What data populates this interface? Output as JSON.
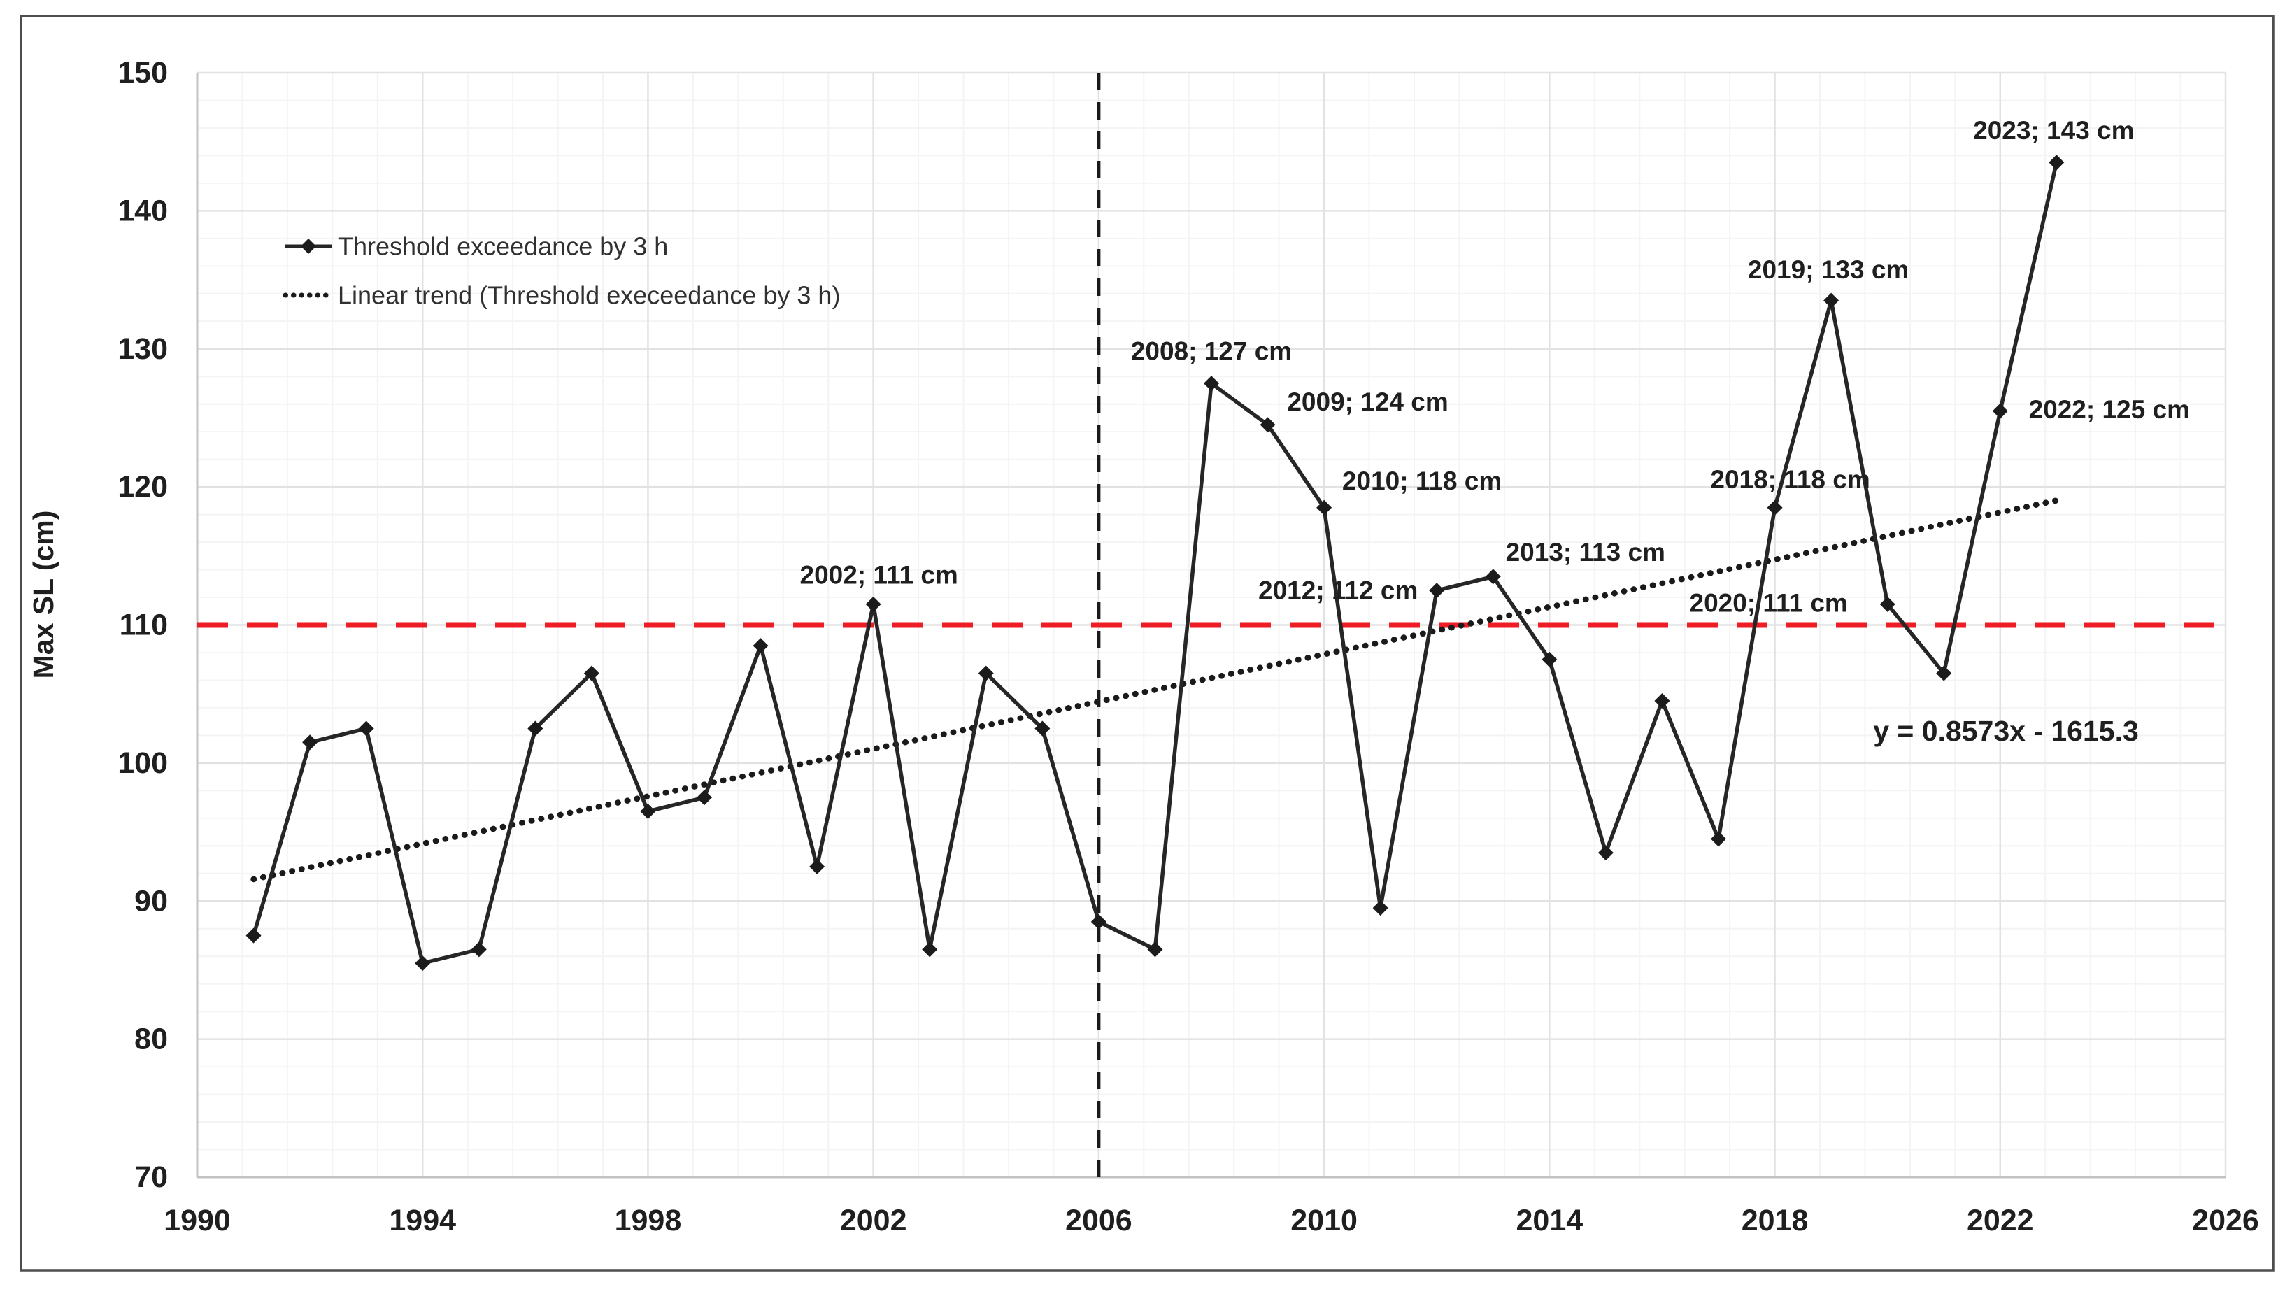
{
  "figure": {
    "y_axis_title": "Max SL (cm)",
    "equation_label": "y = 0.8573x - 1615.3"
  },
  "legend": [
    {
      "label": "Threshold exceedance by 3 h",
      "style": "line-diamond"
    },
    {
      "label": "Linear trend (Threshold execeedance by 3 h)",
      "style": "dotted"
    }
  ],
  "colors": {
    "series": "#262626",
    "marker": "#1b1b1b",
    "trend": "#1a1a1a",
    "threshold": "#ee1c25",
    "divider": "#1a1a1a",
    "grid_major": "#e2e2e2",
    "grid_minor": "#f4f4f4",
    "axis_line": "#c3c3c3",
    "text": "#1f1f1f",
    "legend_text": "#303030",
    "border": "#4d4d4d"
  },
  "chart_data": {
    "type": "line",
    "title": "",
    "xlabel": "",
    "ylabel": "Max SL (cm)",
    "xlim": [
      1990,
      2026
    ],
    "ylim": [
      70,
      150
    ],
    "x_ticks": [
      1990,
      1994,
      1998,
      2002,
      2006,
      2010,
      2014,
      2018,
      2022,
      2026
    ],
    "y_ticks": [
      150,
      140,
      130,
      120,
      110,
      100,
      90,
      80,
      70
    ],
    "x_minor_step": 0.8,
    "y_minor_step": 2,
    "grid": "major+minor",
    "legend_position": "top-left-inside",
    "x": [
      1991,
      1992,
      1993,
      1994,
      1995,
      1996,
      1997,
      1998,
      1999,
      2000,
      2001,
      2002,
      2003,
      2004,
      2005,
      2006,
      2007,
      2008,
      2009,
      2010,
      2011,
      2012,
      2013,
      2014,
      2015,
      2016,
      2017,
      2018,
      2019,
      2020,
      2021,
      2022,
      2023
    ],
    "series": [
      {
        "name": "Threshold exceedance by 3 h",
        "values": [
          87.5,
          101.5,
          102.5,
          85.5,
          86.5,
          102.5,
          106.5,
          96.5,
          97.5,
          108.5,
          92.5,
          111.5,
          86.5,
          106.5,
          102.5,
          88.5,
          86.5,
          127.5,
          124.5,
          118.5,
          89.5,
          112.5,
          113.5,
          107.5,
          93.5,
          104.5,
          94.5,
          118.5,
          133.5,
          111.5,
          106.5,
          125.5,
          143.5
        ]
      }
    ],
    "trend": {
      "name": "Linear trend (Threshold execeedance by 3 h)",
      "slope": 0.8573,
      "intercept": -1615.3,
      "x_start": 1991,
      "x_end": 2023
    },
    "threshold_line": {
      "y": 110,
      "style": "dashed"
    },
    "vertical_line": {
      "x": 2006,
      "style": "dashed"
    },
    "annotations": [
      {
        "year": 2002,
        "label": "2002; 111 cm"
      },
      {
        "year": 2008,
        "label": "2008; 127 cm"
      },
      {
        "year": 2009,
        "label": "2009; 124 cm"
      },
      {
        "year": 2010,
        "label": "2010; 118 cm"
      },
      {
        "year": 2012,
        "label": "2012; 112 cm"
      },
      {
        "year": 2013,
        "label": "2013; 113 cm"
      },
      {
        "year": 2018,
        "label": "2018; 118 cm"
      },
      {
        "year": 2019,
        "label": "2019; 133 cm"
      },
      {
        "year": 2020,
        "label": "2020; 111 cm"
      },
      {
        "year": 2022,
        "label": "2022; 125 cm"
      },
      {
        "year": 2023,
        "label": "2023; 143 cm"
      }
    ]
  }
}
